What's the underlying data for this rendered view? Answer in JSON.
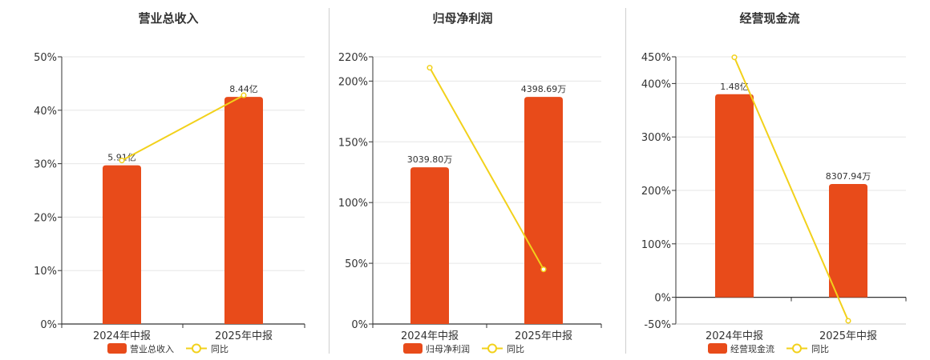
{
  "colors": {
    "bar": "#e84b1a",
    "line": "#f2d11b",
    "grid": "#e6e6e6",
    "axis": "#333333",
    "text": "#333333"
  },
  "legend": {
    "line_name": "同比"
  },
  "chart_data": [
    {
      "type": "bar",
      "title": "营业总收入",
      "categories": [
        "2024年中报",
        "2025年中报"
      ],
      "bar_labels": [
        "5.91亿",
        "8.44亿"
      ],
      "series": [
        {
          "name": "营业总收入",
          "kind": "bar",
          "values": [
            29.7,
            42.5
          ]
        },
        {
          "name": "同比",
          "kind": "line",
          "values": [
            30.6,
            42.8
          ]
        }
      ],
      "yticks": [
        "0%",
        "10%",
        "20%",
        "30%",
        "40%",
        "50%"
      ],
      "ylim": [
        0,
        50
      ],
      "grid": true,
      "legend_position": "bottom"
    },
    {
      "type": "bar",
      "title": "归母净利润",
      "categories": [
        "2024年中报",
        "2025年中报"
      ],
      "bar_labels": [
        "3039.80万",
        "4398.69万"
      ],
      "series": [
        {
          "name": "归母净利润",
          "kind": "bar",
          "values": [
            129,
            187
          ]
        },
        {
          "name": "同比",
          "kind": "line",
          "values": [
            211,
            45
          ]
        }
      ],
      "yticks": [
        "0%",
        "50%",
        "100%",
        "150%",
        "200%",
        "220%"
      ],
      "ylim": [
        0,
        220
      ],
      "grid": true,
      "legend_position": "bottom"
    },
    {
      "type": "bar",
      "title": "经营现金流",
      "categories": [
        "2024年中报",
        "2025年中报"
      ],
      "bar_labels": [
        "1.48亿",
        "8307.94万"
      ],
      "series": [
        {
          "name": "经营现金流",
          "kind": "bar",
          "values": [
            380,
            212
          ]
        },
        {
          "name": "同比",
          "kind": "line",
          "values": [
            449,
            -44
          ]
        }
      ],
      "yticks": [
        "-50%",
        "0%",
        "100%",
        "200%",
        "300%",
        "400%",
        "450%"
      ],
      "ylim": [
        -50,
        450
      ],
      "grid": true,
      "legend_position": "bottom"
    }
  ]
}
